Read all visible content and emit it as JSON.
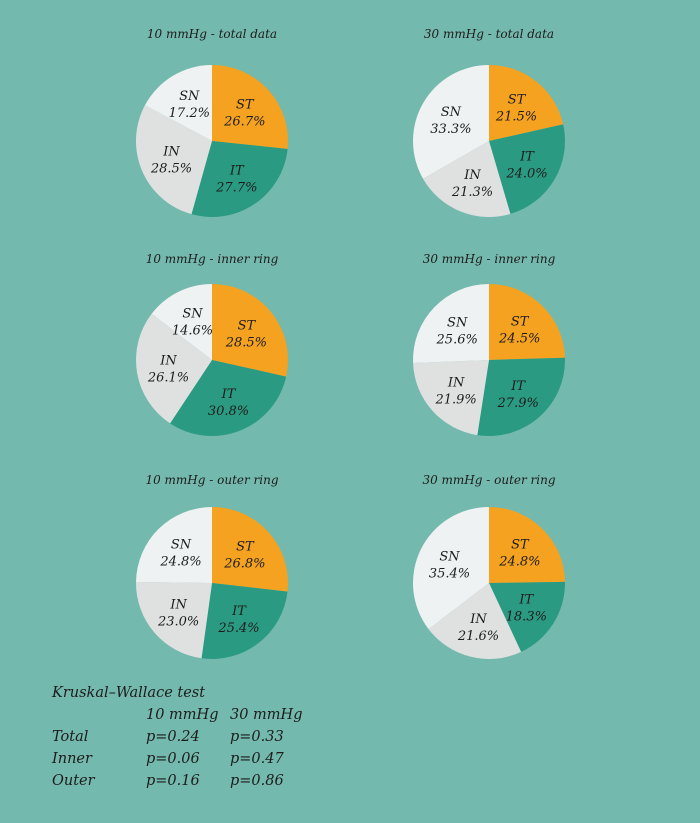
{
  "colors": {
    "background": "#74b9ad",
    "ST": "#f4a21f",
    "IT": "#2a9b82",
    "IN": "#dfe1e0",
    "SN": "#eef2f2",
    "text": "#1c1c1c"
  },
  "chart_data": [
    {
      "type": "pie",
      "title": "10 mmHg - total data",
      "slices": [
        {
          "label": "ST",
          "value": 26.7,
          "text": "26.7%"
        },
        {
          "label": "IT",
          "value": 27.7,
          "text": "27.7%"
        },
        {
          "label": "IN",
          "value": 28.5,
          "text": "28.5%"
        },
        {
          "label": "SN",
          "value": 17.2,
          "text": "17.2%"
        }
      ]
    },
    {
      "type": "pie",
      "title": "30 mmHg - total data",
      "slices": [
        {
          "label": "ST",
          "value": 21.5,
          "text": "21.5%"
        },
        {
          "label": "IT",
          "value": 24.0,
          "text": "24.0%"
        },
        {
          "label": "IN",
          "value": 21.3,
          "text": "21.3%"
        },
        {
          "label": "SN",
          "value": 33.3,
          "text": "33.3%"
        }
      ]
    },
    {
      "type": "pie",
      "title": "10 mmHg - inner ring",
      "slices": [
        {
          "label": "ST",
          "value": 28.5,
          "text": "28.5%"
        },
        {
          "label": "IT",
          "value": 30.8,
          "text": "30.8%"
        },
        {
          "label": "IN",
          "value": 26.1,
          "text": "26.1%"
        },
        {
          "label": "SN",
          "value": 14.6,
          "text": "14.6%"
        }
      ]
    },
    {
      "type": "pie",
      "title": "30 mmHg - inner ring",
      "slices": [
        {
          "label": "ST",
          "value": 24.5,
          "text": "24.5%"
        },
        {
          "label": "IT",
          "value": 27.9,
          "text": "27.9%"
        },
        {
          "label": "IN",
          "value": 21.9,
          "text": "21.9%"
        },
        {
          "label": "SN",
          "value": 25.6,
          "text": "25.6%"
        }
      ]
    },
    {
      "type": "pie",
      "title": "10 mmHg - outer ring",
      "slices": [
        {
          "label": "ST",
          "value": 26.8,
          "text": "26.8%"
        },
        {
          "label": "IT",
          "value": 25.4,
          "text": "25.4%"
        },
        {
          "label": "IN",
          "value": 23.0,
          "text": "23.0%"
        },
        {
          "label": "SN",
          "value": 24.8,
          "text": "24.8%"
        }
      ]
    },
    {
      "type": "pie",
      "title": "30 mmHg - outer ring",
      "slices": [
        {
          "label": "ST",
          "value": 24.8,
          "text": "24.8%"
        },
        {
          "label": "IT",
          "value": 18.3,
          "text": "18.3%"
        },
        {
          "label": "IN",
          "value": 21.6,
          "text": "21.6%"
        },
        {
          "label": "SN",
          "value": 35.4,
          "text": "35.4%"
        }
      ]
    }
  ],
  "stats": {
    "title": "Kruskal–Wallace test",
    "headers": [
      "",
      "10 mmHg",
      "30 mmHg"
    ],
    "rows": [
      {
        "label": "Total",
        "p10": "p=0.24",
        "p30": "p=0.33"
      },
      {
        "label": "Inner",
        "p10": "p=0.06",
        "p30": "p=0.47"
      },
      {
        "label": "Outer",
        "p10": "p=0.16",
        "p30": "p=0.86"
      }
    ]
  }
}
